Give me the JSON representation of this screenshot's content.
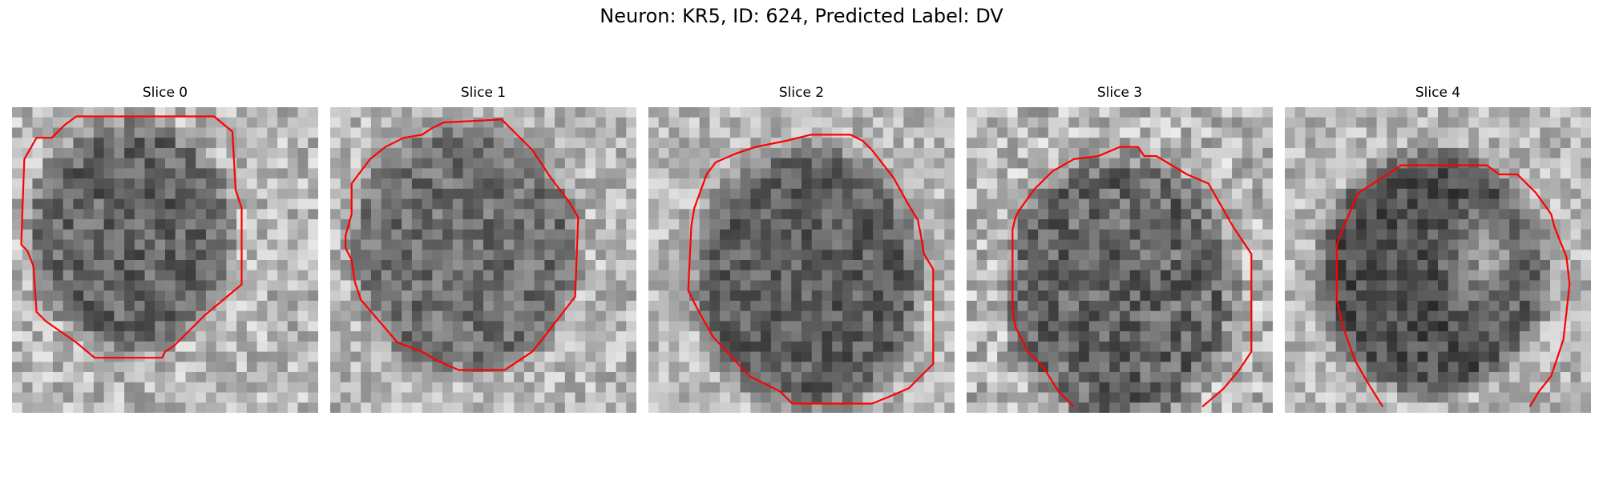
{
  "figure": {
    "title": "Neuron: KR5, ID: 624, Predicted Label: DV"
  },
  "contour_color": "#ff0000",
  "panels": [
    {
      "title": "Slice 0"
    },
    {
      "title": "Slice 1"
    },
    {
      "title": "Slice 2"
    },
    {
      "title": "Slice 3"
    },
    {
      "title": "Slice 4"
    }
  ]
}
